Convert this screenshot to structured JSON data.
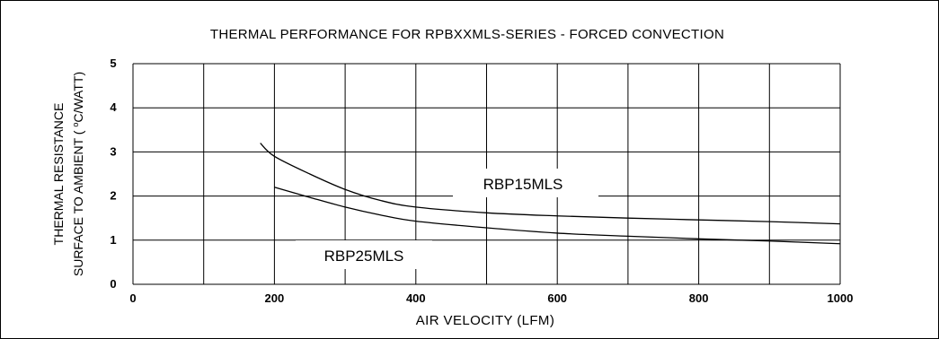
{
  "chart_data": {
    "type": "line",
    "title": "THERMAL PERFORMANCE FOR RPBXXMLS-SERIES - FORCED CONVECTION",
    "xlabel": "AIR VELOCITY (LFM)",
    "ylabel_line1": "THERMAL RESISTANCE",
    "ylabel_line2_prefix": "SURFACE TO AMBIENT ( ",
    "ylabel_line2_sup": "o",
    "ylabel_line2_suffix": "C/WATT)",
    "xlim": [
      0,
      1000
    ],
    "ylim": [
      0,
      5
    ],
    "x_ticks": [
      0,
      200,
      400,
      600,
      800,
      1000
    ],
    "y_ticks": [
      0,
      1,
      2,
      3,
      4,
      5
    ],
    "x_grid_step": 100,
    "grid": true,
    "series": [
      {
        "name": "RBP15MLS",
        "x": [
          180,
          200,
          250,
          300,
          350,
          400,
          500,
          600,
          700,
          800,
          900,
          1000
        ],
        "y": [
          3.2,
          2.9,
          2.5,
          2.15,
          1.9,
          1.75,
          1.62,
          1.55,
          1.5,
          1.46,
          1.42,
          1.37
        ]
      },
      {
        "name": "RBP25MLS",
        "x": [
          200,
          250,
          300,
          350,
          400,
          500,
          600,
          700,
          800,
          900,
          1000
        ],
        "y": [
          2.2,
          1.97,
          1.75,
          1.57,
          1.43,
          1.28,
          1.16,
          1.09,
          1.03,
          0.98,
          0.92
        ]
      }
    ]
  }
}
